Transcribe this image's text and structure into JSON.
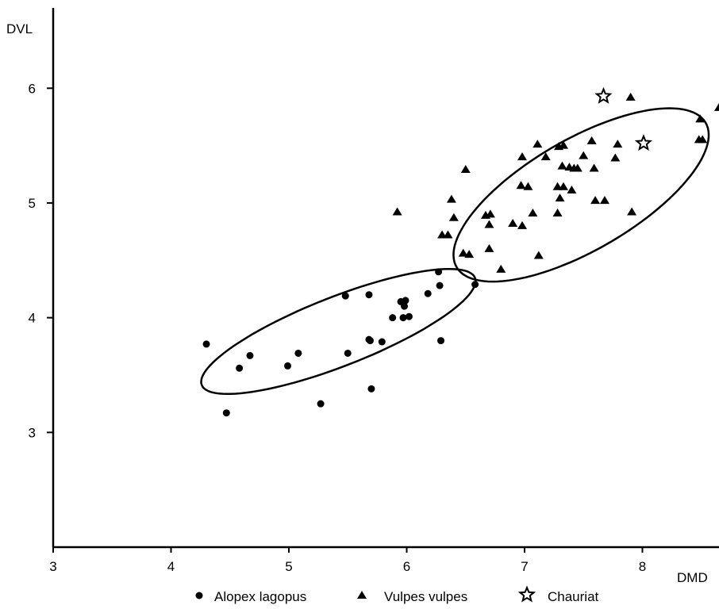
{
  "chart_data": {
    "type": "scatter",
    "xlabel": "DMD",
    "ylabel": "DVL",
    "xlim": [
      3,
      8.65
    ],
    "ylim": [
      2.0,
      6.7
    ],
    "xticks": [
      "3",
      "4",
      "5",
      "6",
      "7",
      "8"
    ],
    "yticks": [
      "3",
      "4",
      "5",
      "6"
    ],
    "grid": false,
    "legend_position": "bottom",
    "series": [
      {
        "name": "Alopex lagopus",
        "marker": "circle",
        "color": "#000000",
        "points": [
          [
            4.3,
            3.77
          ],
          [
            4.47,
            3.17
          ],
          [
            4.58,
            3.56
          ],
          [
            4.67,
            3.67
          ],
          [
            4.99,
            3.58
          ],
          [
            5.08,
            3.69
          ],
          [
            5.27,
            3.25
          ],
          [
            5.48,
            4.19
          ],
          [
            5.5,
            3.69
          ],
          [
            5.68,
            4.2
          ],
          [
            5.68,
            3.81
          ],
          [
            5.69,
            3.8
          ],
          [
            5.7,
            3.38
          ],
          [
            5.79,
            3.79
          ],
          [
            5.88,
            4.0
          ],
          [
            5.95,
            4.14
          ],
          [
            5.97,
            4.0
          ],
          [
            5.98,
            4.1
          ],
          [
            5.99,
            4.15
          ],
          [
            6.02,
            4.01
          ],
          [
            6.18,
            4.21
          ],
          [
            6.27,
            4.4
          ],
          [
            6.28,
            4.28
          ],
          [
            6.29,
            3.8
          ],
          [
            6.58,
            4.29
          ]
        ]
      },
      {
        "name": "Vulpes vulpes",
        "marker": "triangle",
        "color": "#000000",
        "points": [
          [
            5.92,
            4.92
          ],
          [
            6.3,
            4.72
          ],
          [
            6.35,
            4.72
          ],
          [
            6.38,
            5.03
          ],
          [
            6.4,
            4.87
          ],
          [
            6.48,
            4.56
          ],
          [
            6.5,
            5.29
          ],
          [
            6.53,
            4.55
          ],
          [
            6.67,
            4.89
          ],
          [
            6.7,
            4.81
          ],
          [
            6.71,
            4.9
          ],
          [
            6.7,
            4.6
          ],
          [
            6.8,
            4.42
          ],
          [
            6.9,
            4.82
          ],
          [
            6.97,
            5.15
          ],
          [
            6.98,
            4.8
          ],
          [
            6.98,
            5.4
          ],
          [
            7.03,
            5.14
          ],
          [
            7.07,
            4.91
          ],
          [
            7.11,
            5.51
          ],
          [
            7.12,
            4.54
          ],
          [
            7.18,
            5.4
          ],
          [
            7.28,
            4.91
          ],
          [
            7.28,
            5.14
          ],
          [
            7.29,
            5.49
          ],
          [
            7.3,
            5.04
          ],
          [
            7.32,
            5.32
          ],
          [
            7.33,
            5.14
          ],
          [
            7.33,
            5.5
          ],
          [
            7.38,
            5.31
          ],
          [
            7.4,
            5.11
          ],
          [
            7.42,
            5.3
          ],
          [
            7.45,
            5.3
          ],
          [
            7.5,
            5.41
          ],
          [
            7.57,
            5.54
          ],
          [
            7.59,
            5.3
          ],
          [
            7.6,
            5.02
          ],
          [
            7.68,
            5.02
          ],
          [
            7.77,
            5.39
          ],
          [
            7.79,
            5.51
          ],
          [
            7.9,
            5.92
          ],
          [
            7.91,
            4.92
          ],
          [
            8.48,
            5.55
          ],
          [
            8.49,
            5.73
          ],
          [
            8.51,
            5.55
          ],
          [
            8.65,
            5.83
          ]
        ]
      },
      {
        "name": "Chauriat",
        "marker": "star",
        "color": "#000000",
        "points": [
          [
            7.67,
            5.93
          ],
          [
            8.01,
            5.52
          ]
        ]
      }
    ],
    "ellipses": [
      {
        "series": "Alopex lagopus",
        "center": [
          5.42,
          3.88
        ],
        "semi_axis_1": 1.25,
        "semi_axis_2": 0.3,
        "angle_data": 22
      },
      {
        "series": "Vulpes vulpes",
        "center": [
          7.48,
          5.07
        ],
        "semi_axis_1": 1.23,
        "semi_axis_2": 0.48,
        "angle_data": 31
      }
    ]
  }
}
